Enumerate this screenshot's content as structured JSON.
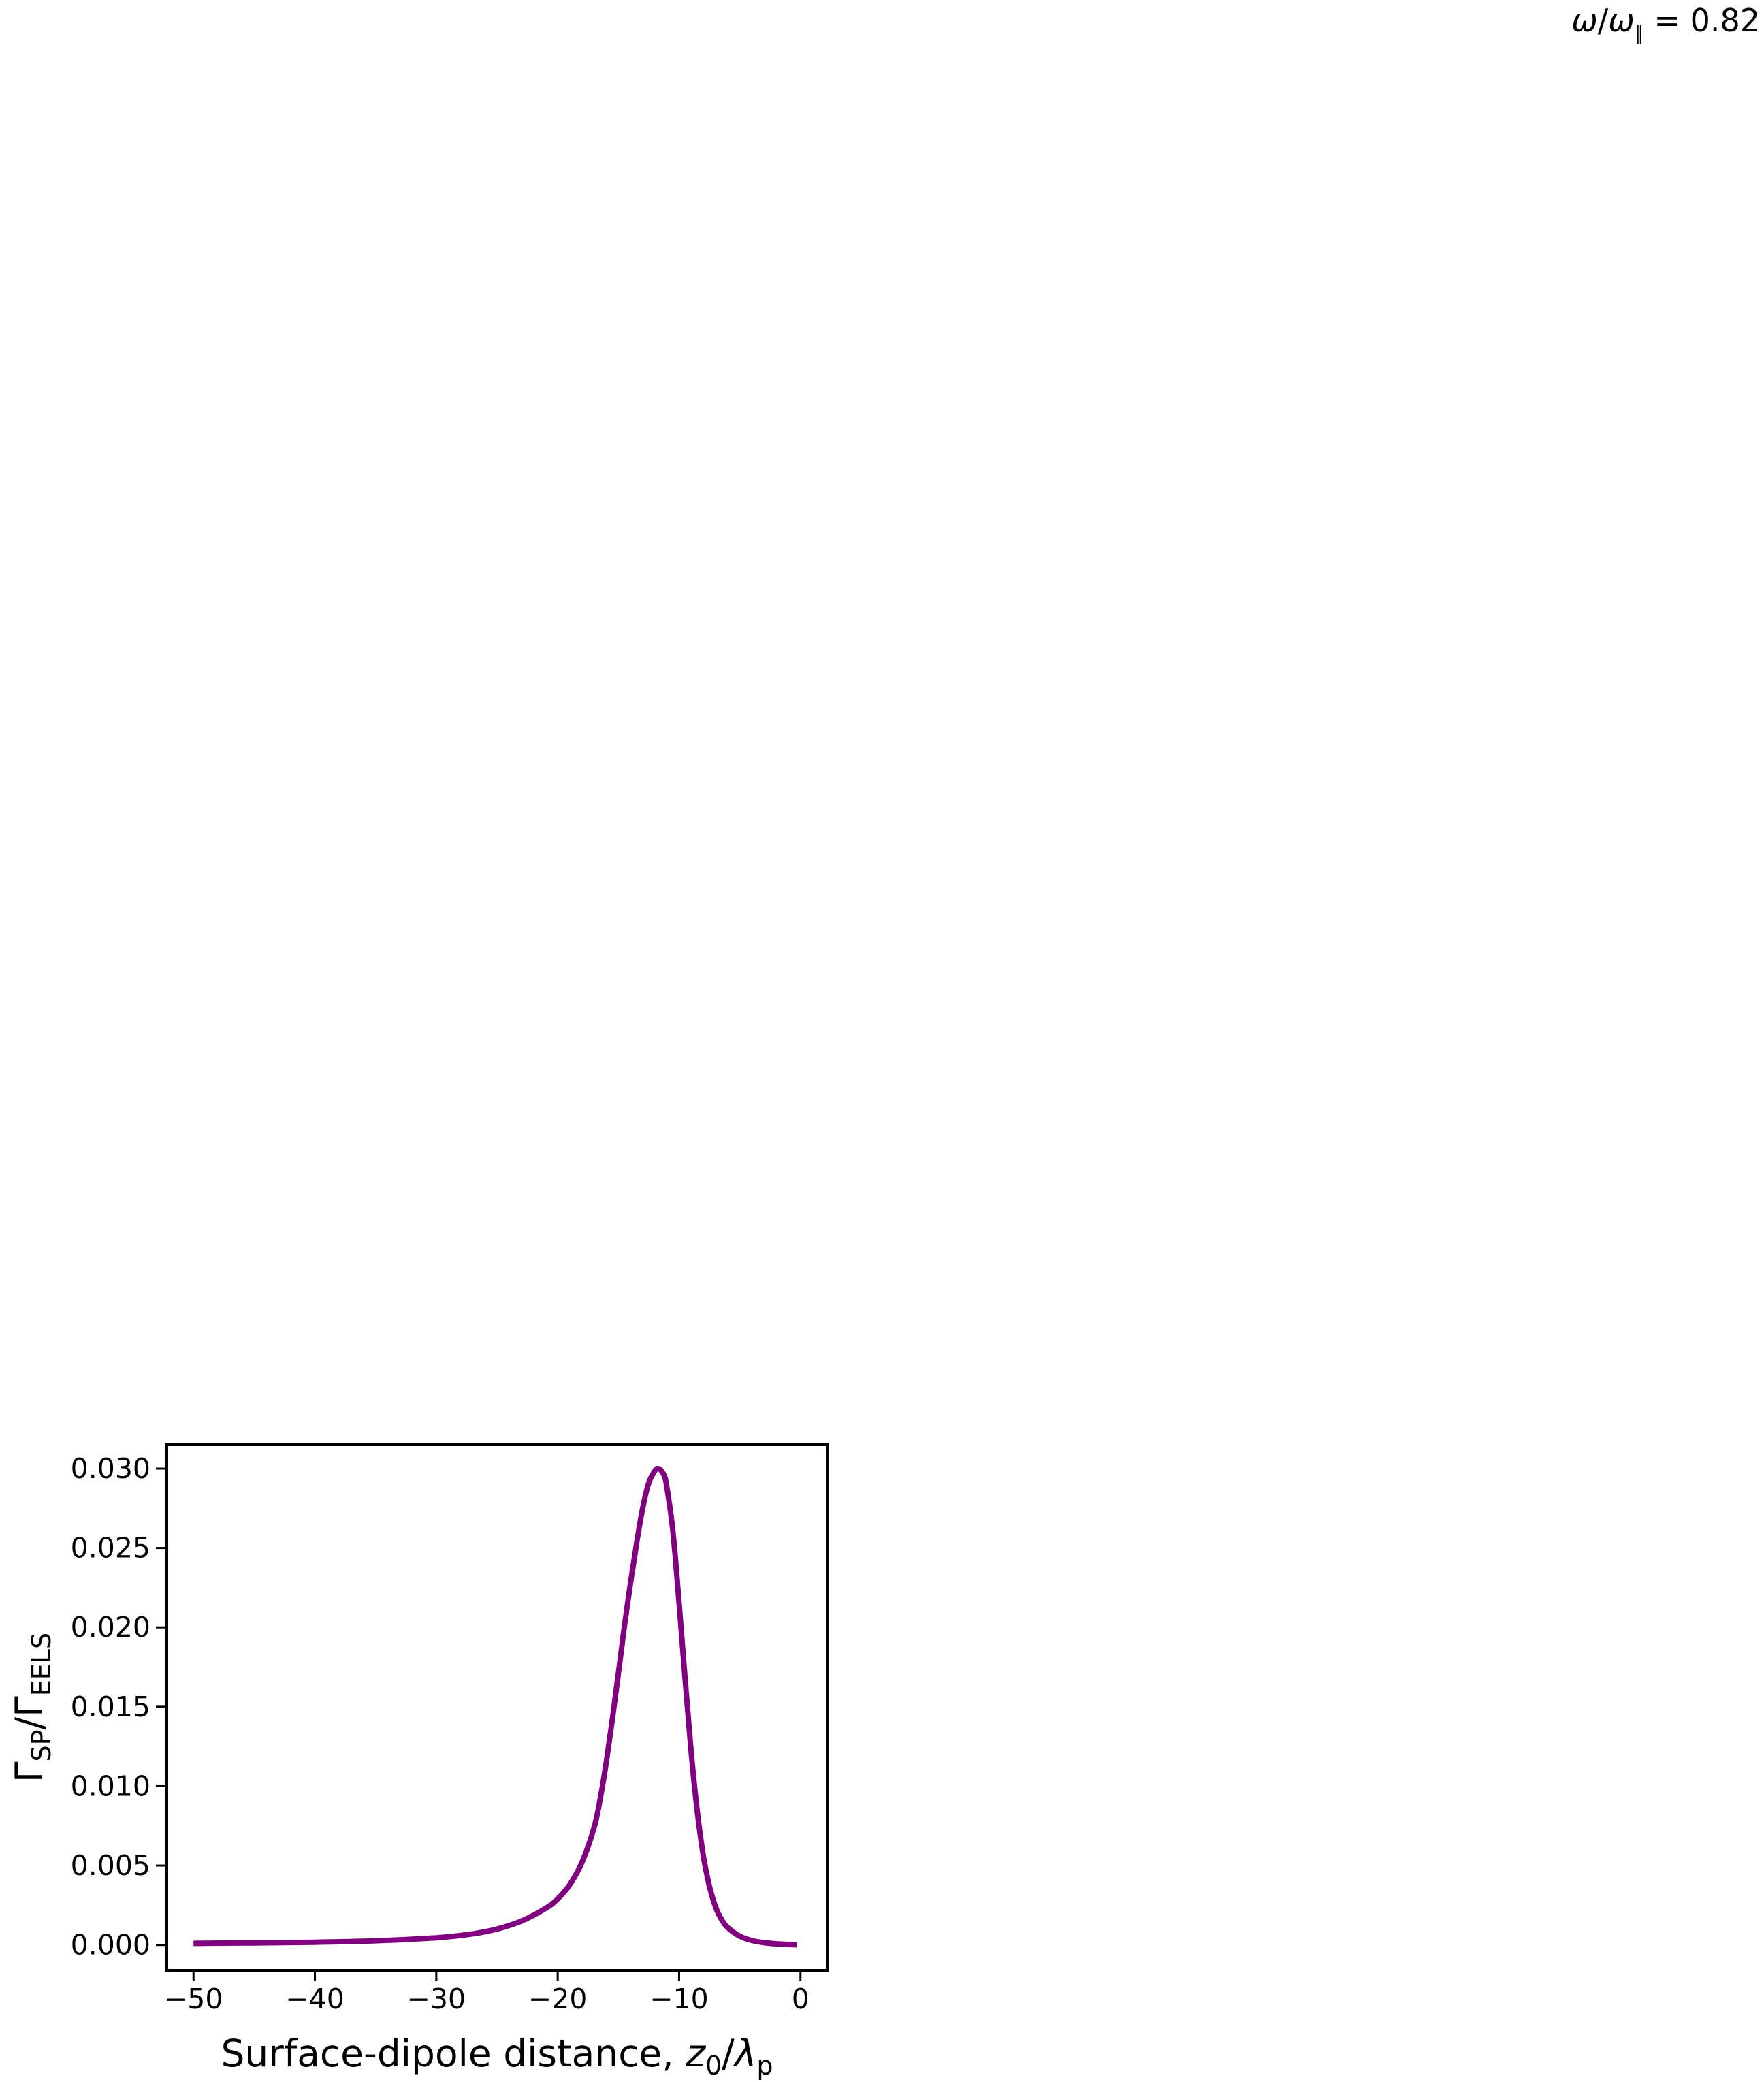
{
  "annotation": {
    "omega": "ω",
    "slash": "/",
    "omega2": "ω",
    "sub": "∥",
    "value": " = 0.82"
  },
  "chart_data": {
    "type": "line",
    "title": "",
    "xlabel": {
      "main": "Surface-dipole distance, ",
      "z": "z",
      "zsub": "0",
      "slash": "/",
      "lambda": "λ",
      "lsub": "p"
    },
    "ylabel": {
      "g1": "Γ",
      "s1": "SP",
      "slash": "/",
      "g2": "Γ",
      "s2": "EELS"
    },
    "xlim": [
      -52.2,
      2.2
    ],
    "ylim": [
      -0.0016,
      0.0315
    ],
    "xticks": [
      -50,
      -40,
      -30,
      -20,
      -10,
      0
    ],
    "xtick_labels": [
      "−50",
      "−40",
      "−30",
      "−20",
      "−10",
      "0"
    ],
    "yticks": [
      0.0,
      0.005,
      0.01,
      0.015,
      0.02,
      0.025,
      0.03
    ],
    "ytick_labels": [
      "0.000",
      "0.005",
      "0.010",
      "0.015",
      "0.020",
      "0.025",
      "0.030"
    ],
    "series": [
      {
        "color": "#800080",
        "x": [
          -50,
          -45,
          -40,
          -35,
          -30,
          -27,
          -25,
          -23,
          -21,
          -20,
          -19,
          -18,
          -17,
          -16.5,
          -16,
          -15.5,
          -15,
          -14.5,
          -14,
          -13.5,
          -13,
          -12.5,
          -12,
          -11.8,
          -11.5,
          -11.2,
          -11,
          -10.5,
          -10,
          -9.5,
          -9,
          -8.5,
          -8,
          -7.5,
          -7,
          -6.5,
          -6,
          -5,
          -4,
          -3,
          -2,
          -1,
          -0.3
        ],
        "y": [
          0.0001,
          0.00013,
          0.00017,
          0.00026,
          0.00045,
          0.0007,
          0.001,
          0.0015,
          0.0023,
          0.0029,
          0.0038,
          0.0052,
          0.0074,
          0.0092,
          0.0115,
          0.0142,
          0.0171,
          0.0201,
          0.0228,
          0.0253,
          0.0275,
          0.0291,
          0.02985,
          0.03,
          0.0299,
          0.0295,
          0.0288,
          0.026,
          0.0215,
          0.0167,
          0.0121,
          0.0084,
          0.0056,
          0.0037,
          0.0024,
          0.0016,
          0.0011,
          0.00055,
          0.00028,
          0.00014,
          7e-05,
          3e-05,
          1e-05
        ]
      }
    ],
    "grid": false,
    "legend": "none"
  }
}
